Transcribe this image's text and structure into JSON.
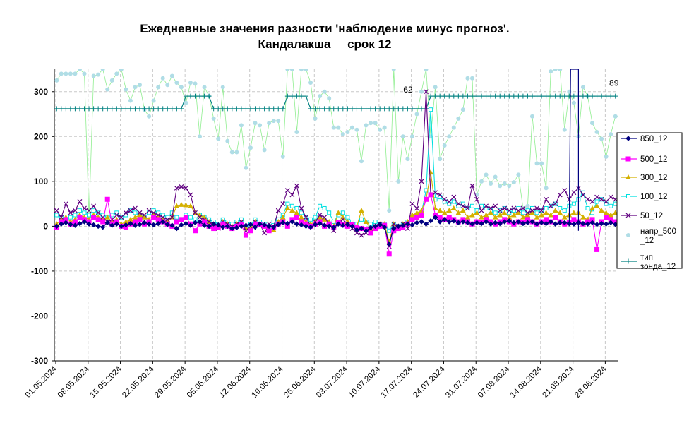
{
  "chart_data": {
    "type": "line",
    "title": "Ежедневные значения разности 'наблюдение минус прогноз'.",
    "subtitle": "Кандалакша     срок 12",
    "xlabel": "",
    "ylabel": "",
    "ylim": [
      -300,
      350
    ],
    "yticks": [
      "300",
      "200",
      "100",
      "0",
      "-100",
      "-200",
      "-300"
    ],
    "ytick_values": [
      300,
      200,
      100,
      0,
      -100,
      -200,
      -300
    ],
    "xtick_labels": [
      "01.05.2024",
      "08.05.2024",
      "15.05.2024",
      "22.05.2024",
      "29.05.2024",
      "05.06.2024",
      "12.06.2024",
      "19.06.2024",
      "26.06.2024",
      "03.07.2024",
      "10.07.2024",
      "17.07.2024",
      "24.07.2024",
      "31.07.2024",
      "07.08.2024",
      "14.08.2024",
      "21.08.2024",
      "28.08.2024"
    ],
    "xtick_days": [
      0,
      7,
      14,
      21,
      28,
      35,
      42,
      49,
      56,
      63,
      70,
      77,
      84,
      91,
      98,
      105,
      112,
      119
    ],
    "x_days_total": 122,
    "grid": true,
    "legend_position": "right",
    "annotations": [
      {
        "text": "62",
        "x": 77,
        "y": 290
      },
      {
        "text": "89",
        "x": 121,
        "y": 305
      }
    ],
    "series": [
      {
        "name": "850_12",
        "color": "#000080",
        "marker": "diamond",
        "values": [
          0,
          5,
          8,
          4,
          2,
          6,
          10,
          5,
          3,
          0,
          -2,
          8,
          2,
          5,
          0,
          3,
          6,
          2,
          4,
          8,
          5,
          3,
          6,
          10,
          4,
          2,
          -5,
          3,
          6,
          2,
          8,
          10,
          2,
          0,
          5,
          3,
          -2,
          0,
          -5,
          -3,
          0,
          2,
          4,
          -2,
          5,
          3,
          0,
          -2,
          4,
          8,
          6,
          10,
          5,
          3,
          0,
          -2,
          4,
          6,
          2,
          0,
          -3,
          5,
          2,
          4,
          0,
          -8,
          -5,
          -10,
          -3,
          0,
          4,
          -2,
          -40,
          -5,
          0,
          2,
          5,
          3,
          8,
          10,
          5,
          12,
          20,
          10,
          15,
          10,
          12,
          8,
          10,
          8,
          5,
          8,
          6,
          10,
          5,
          8,
          6,
          10,
          12,
          8,
          10,
          6,
          8,
          10,
          5,
          8,
          6,
          10,
          5,
          8,
          8,
          6,
          5,
          8,
          6,
          5,
          8,
          4,
          6,
          5,
          8,
          4,
          6,
          -32
        ]
      },
      {
        "name": "500_12",
        "color": "#ff00ff",
        "marker": "square",
        "values": [
          -2,
          10,
          15,
          5,
          10,
          20,
          15,
          10,
          20,
          15,
          10,
          60,
          5,
          10,
          0,
          -3,
          5,
          10,
          15,
          5,
          10,
          20,
          15,
          10,
          5,
          0,
          10,
          15,
          20,
          5,
          -10,
          5,
          10,
          0,
          -5,
          -3,
          5,
          0,
          -5,
          0,
          3,
          -20,
          -10,
          5,
          3,
          0,
          -10,
          -3,
          5,
          10,
          0,
          15,
          20,
          10,
          5,
          0,
          5,
          10,
          0,
          5,
          -2,
          8,
          4,
          0,
          3,
          -2,
          -5,
          -8,
          -15,
          -5,
          0,
          2,
          -62,
          -10,
          -5,
          -3,
          5,
          15,
          20,
          25,
          60,
          70,
          25,
          20,
          15,
          20,
          15,
          10,
          15,
          10,
          5,
          10,
          8,
          15,
          10,
          5,
          10,
          15,
          10,
          5,
          10,
          8,
          15,
          10,
          5,
          10,
          15,
          10,
          20,
          10,
          5,
          8,
          15,
          10,
          5,
          10,
          15,
          -52,
          10,
          20,
          15,
          10,
          20,
          15
        ]
      },
      {
        "name": "300_12",
        "color": "#d4b000",
        "marker": "triangle",
        "values": [
          5,
          15,
          20,
          10,
          15,
          25,
          20,
          15,
          25,
          20,
          15,
          20,
          10,
          15,
          5,
          10,
          15,
          20,
          25,
          20,
          15,
          25,
          20,
          15,
          10,
          20,
          45,
          48,
          47,
          45,
          30,
          25,
          20,
          10,
          5,
          0,
          10,
          5,
          0,
          5,
          8,
          -5,
          -5,
          10,
          5,
          0,
          -5,
          -8,
          10,
          20,
          40,
          35,
          30,
          20,
          10,
          5,
          10,
          20,
          15,
          10,
          0,
          30,
          20,
          10,
          5,
          0,
          35,
          10,
          -5,
          0,
          5,
          5,
          -35,
          5,
          0,
          5,
          10,
          25,
          30,
          35,
          60,
          120,
          40,
          35,
          30,
          35,
          40,
          30,
          35,
          20,
          25,
          30,
          20,
          25,
          30,
          20,
          25,
          30,
          20,
          25,
          30,
          20,
          25,
          30,
          20,
          25,
          30,
          25,
          35,
          30,
          20,
          25,
          30,
          30,
          20,
          15,
          40,
          45,
          35,
          30,
          25,
          30
        ]
      },
      {
        "name": "100_12",
        "color": "#00e0e0",
        "marker": "square-open",
        "values": [
          25,
          20,
          15,
          20,
          25,
          35,
          30,
          25,
          35,
          30,
          25,
          20,
          25,
          30,
          20,
          25,
          35,
          30,
          25,
          20,
          30,
          35,
          30,
          25,
          20,
          30,
          20,
          15,
          25,
          20,
          15,
          25,
          20,
          15,
          10,
          5,
          15,
          10,
          5,
          10,
          15,
          -5,
          5,
          15,
          10,
          5,
          0,
          10,
          15,
          25,
          50,
          45,
          40,
          30,
          20,
          15,
          20,
          45,
          40,
          30,
          10,
          25,
          30,
          20,
          10,
          5,
          15,
          10,
          5,
          10,
          5,
          5,
          -10,
          5,
          0,
          5,
          10,
          20,
          25,
          30,
          80,
          260,
          60,
          65,
          55,
          50,
          55,
          45,
          50,
          40,
          45,
          35,
          45,
          40,
          35,
          30,
          35,
          40,
          30,
          35,
          40,
          30,
          35,
          40,
          30,
          35,
          40,
          45,
          50,
          40,
          35,
          45,
          50,
          60,
          75,
          40,
          30,
          55,
          60,
          50,
          45,
          50
        ]
      },
      {
        "name": "50_12",
        "color": "#600080",
        "marker": "x",
        "values": [
          35,
          20,
          50,
          30,
          35,
          55,
          40,
          35,
          45,
          30,
          20,
          10,
          15,
          25,
          20,
          30,
          35,
          40,
          30,
          25,
          35,
          30,
          25,
          20,
          15,
          20,
          85,
          88,
          85,
          70,
          30,
          20,
          15,
          10,
          5,
          -5,
          10,
          5,
          0,
          5,
          10,
          -10,
          0,
          10,
          5,
          -15,
          5,
          0,
          35,
          50,
          80,
          70,
          90,
          40,
          20,
          0,
          10,
          25,
          20,
          5,
          -10,
          10,
          15,
          5,
          -5,
          -15,
          -20,
          -15,
          -5,
          0,
          5,
          0,
          -45,
          5,
          0,
          5,
          -5,
          50,
          40,
          100,
          300,
          70,
          75,
          70,
          60,
          55,
          65,
          50,
          45,
          40,
          90,
          60,
          35,
          45,
          40,
          45,
          35,
          40,
          35,
          40,
          35,
          40,
          30,
          35,
          40,
          35,
          60,
          45,
          50,
          70,
          80,
          60,
          75,
          85,
          70,
          60,
          55,
          65,
          60,
          55,
          65,
          60
        ]
      },
      {
        "name": "напр_500\n_12",
        "color": "#b0dde6",
        "line_color": "#90ee90",
        "marker": "circle",
        "values": [
          325,
          340,
          340,
          340,
          340,
          350,
          340,
          20,
          335,
          338,
          350,
          305,
          325,
          340,
          350,
          305,
          280,
          310,
          315,
          260,
          245,
          280,
          310,
          330,
          315,
          335,
          320,
          310,
          275,
          320,
          318,
          200,
          310,
          290,
          240,
          195,
          310,
          190,
          165,
          165,
          225,
          130,
          175,
          230,
          225,
          170,
          230,
          235,
          235,
          155,
          350,
          350,
          210,
          350,
          350,
          320,
          240,
          290,
          300,
          285,
          220,
          220,
          205,
          210,
          220,
          215,
          145,
          225,
          230,
          230,
          215,
          220,
          35,
          350,
          100,
          200,
          150,
          200,
          250,
          300,
          350,
          200,
          310,
          150,
          180,
          200,
          220,
          240,
          260,
          330,
          330,
          70,
          100,
          115,
          95,
          110,
          90,
          95,
          90,
          98,
          115,
          40,
          45,
          245,
          140,
          140,
          85,
          345,
          350,
          350,
          215,
          300,
          275,
          200,
          310,
          290,
          230,
          210,
          195,
          155,
          205,
          245,
          245,
          295,
          305
        ]
      },
      {
        "name": "тип\nзонда_12",
        "color": "#008080",
        "marker": "plus",
        "values": [
          262,
          262,
          262,
          262,
          262,
          262,
          262,
          262,
          262,
          262,
          262,
          262,
          262,
          262,
          262,
          262,
          262,
          262,
          262,
          262,
          262,
          262,
          262,
          262,
          262,
          262,
          262,
          262,
          290,
          290,
          290,
          290,
          290,
          290,
          262,
          262,
          262,
          262,
          262,
          262,
          262,
          262,
          262,
          262,
          262,
          262,
          262,
          262,
          262,
          262,
          290,
          290,
          290,
          290,
          290,
          262,
          262,
          262,
          262,
          262,
          262,
          262,
          262,
          262,
          262,
          262,
          262,
          262,
          262,
          262,
          262,
          262,
          262,
          262,
          262,
          262,
          262,
          262,
          262,
          262,
          262,
          290,
          290,
          290,
          290,
          290,
          290,
          290,
          290,
          290,
          290,
          290,
          290,
          290,
          290,
          290,
          290,
          290,
          290,
          290,
          290,
          290,
          290,
          290,
          290,
          290,
          290,
          290,
          290,
          290,
          290,
          290,
          290,
          290,
          290,
          290,
          290,
          290,
          290,
          290,
          290,
          290
        ]
      }
    ],
    "spike": {
      "series": "850_12",
      "x": 111,
      "y_top": 350,
      "y_bottom": -10,
      "x2": 113
    }
  }
}
